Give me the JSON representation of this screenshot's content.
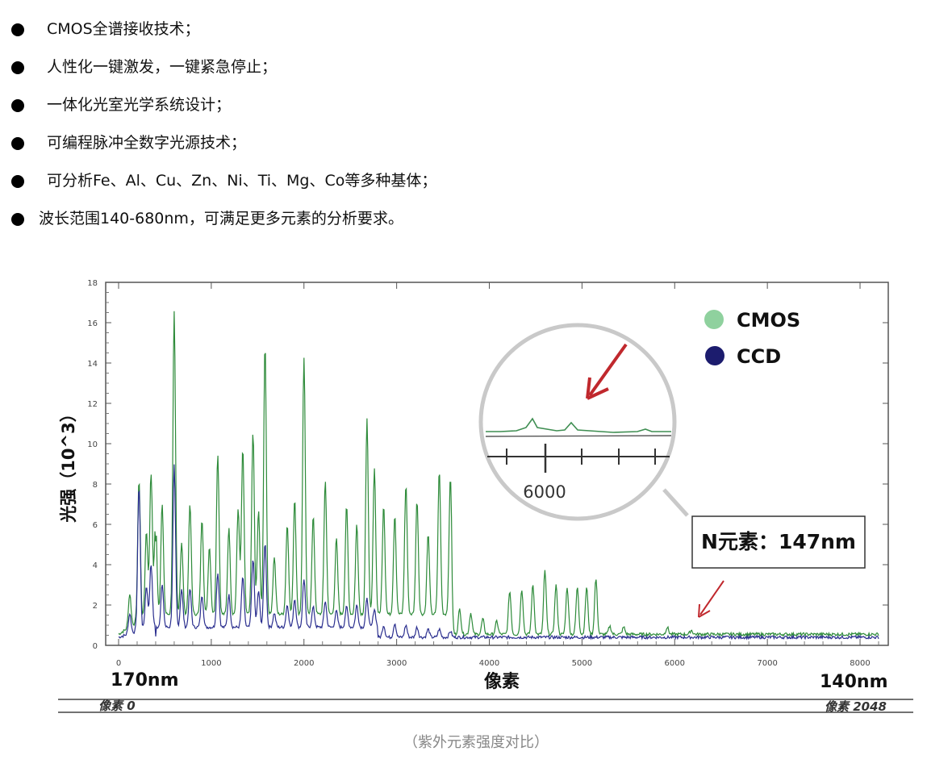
{
  "bullets": [
    "CMOS全谱接收技术；",
    "人性化一键激发，一键紧急停止；",
    "一体化光室光学系统设计；",
    "可编程脉冲全数字光源技术；",
    "可分析Fe、Al、Cu、Zn、Ni、Ti、Mg、Co等多种基体；",
    "波长范围140-680nm，可满足更多元素的分析要求。"
  ],
  "caption": "（紫外元素强度对比）",
  "colors": {
    "cmos": "#2e8b3a",
    "ccd": "#2b2f8f",
    "cmos_legend": "#8fd19e",
    "ccd_legend": "#1c1c6e",
    "arrow": "#c0282d"
  },
  "chart_data": {
    "type": "line",
    "title": "",
    "xlabel": "像素",
    "ylabel": "光强（10^3）",
    "xlim": [
      0,
      8250
    ],
    "ylim": [
      0,
      18
    ],
    "x_ticks": [
      0,
      1000,
      2000,
      3000,
      4000,
      5000,
      6000,
      7000,
      8000
    ],
    "y_ticks": [
      0,
      2,
      4,
      6,
      8,
      10,
      12,
      14,
      16,
      18
    ],
    "grid": false,
    "legend": [
      "CMOS",
      "CCD"
    ],
    "legend_position": "top-right",
    "x_start_label": "170nm",
    "x_end_label": "140nm",
    "pixel_start_label": "像素 0",
    "pixel_end_label": "像素 2048",
    "annotation_label": "N元素：147nm",
    "inset_tick_label": "6000",
    "series": [
      {
        "name": "CMOS",
        "baseline": 0.55,
        "peaks": [
          [
            120,
            2.2
          ],
          [
            220,
            7.6
          ],
          [
            300,
            4.8
          ],
          [
            350,
            7.5
          ],
          [
            400,
            5.1
          ],
          [
            470,
            6.0
          ],
          [
            600,
            15.5
          ],
          [
            680,
            4.1
          ],
          [
            770,
            6.0
          ],
          [
            900,
            5.3
          ],
          [
            980,
            3.9
          ],
          [
            1070,
            8.5
          ],
          [
            1190,
            4.8
          ],
          [
            1290,
            5.8
          ],
          [
            1340,
            8.8
          ],
          [
            1450,
            9.6
          ],
          [
            1510,
            5.7
          ],
          [
            1580,
            14.0
          ],
          [
            1680,
            3.4
          ],
          [
            1820,
            5.0
          ],
          [
            1900,
            6.3
          ],
          [
            2000,
            13.3
          ],
          [
            2100,
            5.4
          ],
          [
            2230,
            7.2
          ],
          [
            2350,
            4.3
          ],
          [
            2460,
            5.9
          ],
          [
            2570,
            5.0
          ],
          [
            2680,
            10.2
          ],
          [
            2760,
            7.8
          ],
          [
            2860,
            6.0
          ],
          [
            2980,
            5.5
          ],
          [
            3100,
            7.0
          ],
          [
            3220,
            6.2
          ],
          [
            3340,
            4.5
          ],
          [
            3460,
            7.7
          ],
          [
            3580,
            7.4
          ],
          [
            3680,
            1.8
          ],
          [
            3800,
            1.6
          ],
          [
            3930,
            1.3
          ],
          [
            4080,
            1.2
          ],
          [
            4220,
            2.7
          ],
          [
            4350,
            2.8
          ],
          [
            4470,
            3.0
          ],
          [
            4600,
            3.7
          ],
          [
            4720,
            3.0
          ],
          [
            4840,
            2.9
          ],
          [
            4950,
            2.9
          ],
          [
            5050,
            2.9
          ],
          [
            5150,
            3.3
          ],
          [
            5300,
            0.95
          ],
          [
            5450,
            0.9
          ],
          [
            5920,
            0.9
          ],
          [
            6180,
            0.75
          ]
        ]
      },
      {
        "name": "CCD",
        "baseline": 0.4,
        "peaks": [
          [
            120,
            1.4
          ],
          [
            220,
            7.6
          ],
          [
            300,
            2.5
          ],
          [
            350,
            3.5
          ],
          [
            470,
            2.5
          ],
          [
            600,
            8.4
          ],
          [
            680,
            2.3
          ],
          [
            770,
            2.3
          ],
          [
            900,
            2.0
          ],
          [
            1070,
            3.1
          ],
          [
            1190,
            2.0
          ],
          [
            1340,
            2.9
          ],
          [
            1450,
            3.8
          ],
          [
            1510,
            2.2
          ],
          [
            1580,
            4.6
          ],
          [
            1680,
            1.1
          ],
          [
            1820,
            1.5
          ],
          [
            1900,
            1.8
          ],
          [
            2000,
            2.8
          ],
          [
            2100,
            1.4
          ],
          [
            2230,
            1.7
          ],
          [
            2350,
            1.2
          ],
          [
            2460,
            1.4
          ],
          [
            2570,
            1.5
          ],
          [
            2680,
            1.8
          ],
          [
            2760,
            1.3
          ],
          [
            2860,
            1.0
          ],
          [
            2980,
            1.1
          ],
          [
            3100,
            1.0
          ],
          [
            3220,
            0.9
          ],
          [
            3340,
            0.8
          ],
          [
            3460,
            0.8
          ],
          [
            3580,
            0.7
          ]
        ]
      }
    ]
  }
}
